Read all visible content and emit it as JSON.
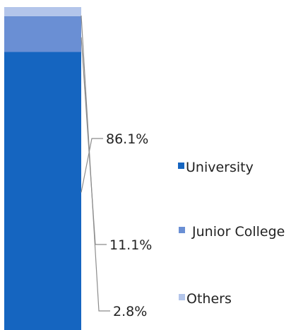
{
  "chart_data": {
    "type": "bar",
    "stacked": true,
    "percent_stacked": true,
    "categories": [
      ""
    ],
    "series": [
      {
        "name": "University",
        "values": [
          86.1
        ],
        "label": "86.1%",
        "color": "#1565c0"
      },
      {
        "name": "Junior College",
        "values": [
          11.1
        ],
        "label": "11.1%",
        "color": "#6a8fd4"
      },
      {
        "name": "Others",
        "values": [
          2.8
        ],
        "label": "2.8%",
        "color": "#b3c5ea"
      }
    ],
    "ylim": [
      0,
      100
    ],
    "grid": false,
    "legend_position": "right",
    "title": "",
    "xlabel": "",
    "ylabel": "",
    "leader_line_color": "#8c8c8c"
  }
}
